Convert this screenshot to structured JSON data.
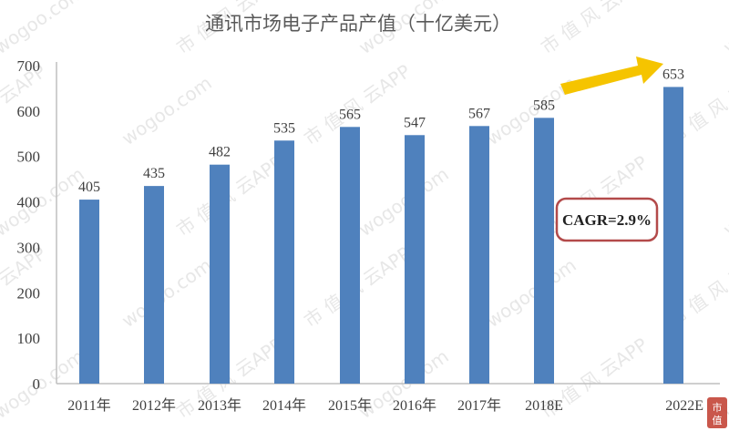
{
  "watermark": {
    "text": "市 值 风 云APP",
    "url": "wogoo.com"
  },
  "seal": {
    "chars": [
      "市",
      "值"
    ]
  },
  "colors": {
    "bar": "#4f81bd",
    "arrow": "#f5c400",
    "cagr_border": "#b34a4a",
    "axis": "#bfbfbf"
  },
  "chart_data": {
    "type": "bar",
    "title": "通讯市场电子产品产值（十亿美元）",
    "categories": [
      "2011年",
      "2012年",
      "2013年",
      "2014年",
      "2015年",
      "2016年",
      "2017年",
      "2018E",
      "2022E"
    ],
    "values": [
      405,
      435,
      482,
      535,
      565,
      547,
      567,
      585,
      653
    ],
    "yticks": [
      0,
      100,
      200,
      300,
      400,
      500,
      600,
      700
    ],
    "ylim": [
      0,
      700
    ],
    "xlabel": "",
    "ylabel": "",
    "grid": false,
    "legend": "none",
    "annotations": {
      "cagr": "CAGR=2.9%",
      "arrow": "from 2018E to 2022E"
    }
  }
}
